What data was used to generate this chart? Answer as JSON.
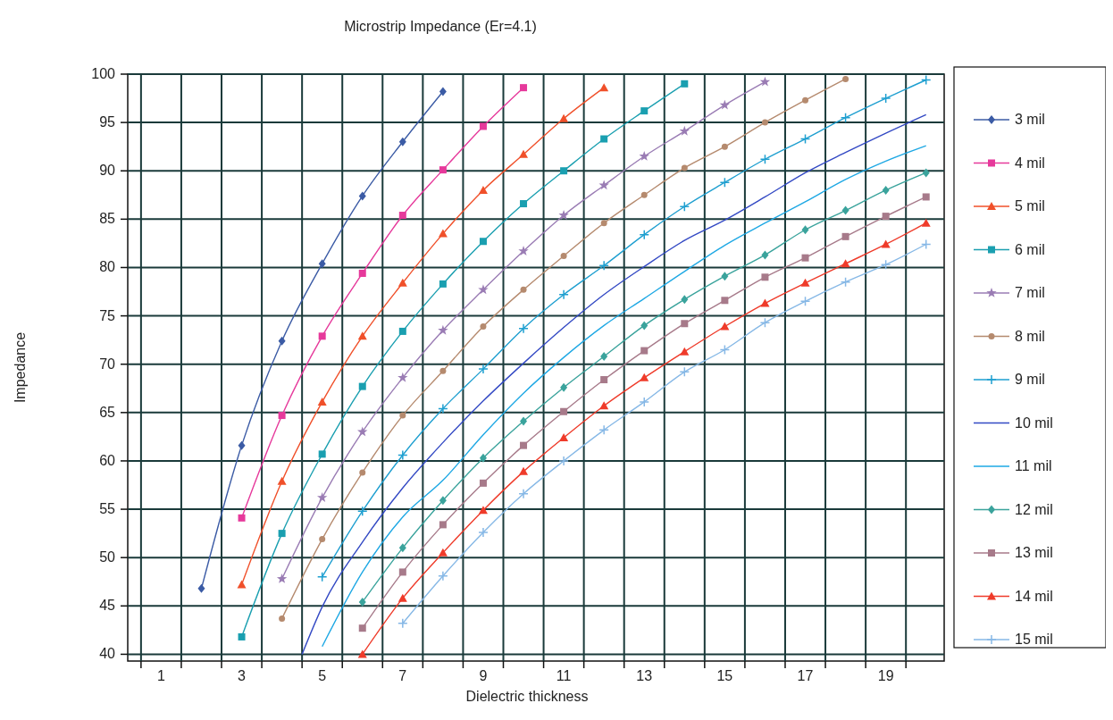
{
  "chart_data": {
    "type": "line",
    "title": "Microstrip Impedance (Er=4.1)",
    "xlabel": "Dielectric thickness",
    "ylabel": "Impedance",
    "xlim": [
      0.17,
      20.45
    ],
    "ylim": [
      39.3,
      100
    ],
    "xticks": [
      {
        "value": 0.5,
        "label": null
      },
      1,
      {
        "value": 1.5,
        "label": null
      },
      {
        "value": 2.5,
        "label": null
      },
      3,
      {
        "value": 3.5,
        "label": null
      },
      {
        "value": 4.5,
        "label": null
      },
      5,
      {
        "value": 5.5,
        "label": null
      },
      {
        "value": 6.5,
        "label": null
      },
      7,
      {
        "value": 7.5,
        "label": null
      },
      {
        "value": 8.5,
        "label": null
      },
      9,
      {
        "value": 9.5,
        "label": null
      },
      {
        "value": 10.5,
        "label": null
      },
      11,
      {
        "value": 11.5,
        "label": null
      },
      {
        "value": 12.5,
        "label": null
      },
      13,
      {
        "value": 13.5,
        "label": null
      },
      {
        "value": 14.5,
        "label": null
      },
      15,
      {
        "value": 15.5,
        "label": null
      },
      {
        "value": 16.5,
        "label": null
      },
      17,
      {
        "value": 17.5,
        "label": null
      },
      {
        "value": 18.5,
        "label": null
      },
      19,
      {
        "value": 19.5,
        "label": null
      }
    ],
    "yticks": [
      40,
      45,
      50,
      55,
      60,
      65,
      70,
      75,
      80,
      85,
      90,
      95,
      100
    ],
    "grid": true,
    "legend": "right",
    "series": [
      {
        "name": "3 mil",
        "color": "#3b5ba5",
        "marker": "diamond",
        "x": [
          2,
          3,
          4,
          5,
          6,
          7,
          8
        ],
        "values": [
          46.8,
          61.6,
          72.4,
          80.4,
          87.4,
          93.0,
          98.2
        ]
      },
      {
        "name": "4 mil",
        "color": "#e6399b",
        "marker": "square",
        "x": [
          3,
          4,
          5,
          6,
          7,
          8,
          9,
          10
        ],
        "values": [
          54.1,
          64.7,
          72.9,
          79.4,
          85.4,
          90.1,
          94.6,
          98.6
        ]
      },
      {
        "name": "5 mil",
        "color": "#f0502a",
        "marker": "triangle",
        "x": [
          3,
          4,
          5,
          6,
          7,
          8,
          9,
          10,
          11,
          12
        ],
        "values": [
          47.2,
          57.9,
          66.1,
          72.9,
          78.4,
          83.5,
          88.0,
          91.7,
          95.4,
          98.6
        ]
      },
      {
        "name": "6 mil",
        "color": "#1a9fb0",
        "marker": "square",
        "x": [
          3,
          4,
          5,
          6,
          7,
          8,
          9,
          10,
          11,
          12,
          13,
          14
        ],
        "values": [
          41.8,
          52.5,
          60.7,
          67.7,
          73.4,
          78.3,
          82.7,
          86.6,
          90.0,
          93.3,
          96.2,
          99.0
        ]
      },
      {
        "name": "7 mil",
        "color": "#9a7cb4",
        "marker": "star",
        "x": [
          4,
          5,
          6,
          7,
          8,
          9,
          10,
          11,
          12,
          13,
          14,
          15,
          16
        ],
        "values": [
          47.8,
          56.2,
          63.0,
          68.6,
          73.5,
          77.7,
          81.7,
          85.4,
          88.5,
          91.5,
          94.1,
          96.8,
          99.2
        ]
      },
      {
        "name": "8 mil",
        "color": "#b58a6e",
        "marker": "circle",
        "x": [
          4,
          5,
          6,
          7,
          8,
          9,
          10,
          11,
          12,
          13,
          14,
          15,
          16,
          17,
          18
        ],
        "values": [
          43.7,
          51.9,
          58.8,
          64.7,
          69.3,
          73.9,
          77.7,
          81.2,
          84.6,
          87.5,
          90.3,
          92.5,
          95.0,
          97.3,
          99.5
        ]
      },
      {
        "name": "9 mil",
        "color": "#1e9fd0",
        "marker": "cross",
        "x": [
          5,
          6,
          7,
          8,
          9,
          10,
          11,
          12,
          13,
          14,
          15,
          16,
          17,
          18,
          19,
          20
        ],
        "values": [
          48.0,
          54.8,
          60.6,
          65.4,
          69.5,
          73.7,
          77.2,
          80.2,
          83.4,
          86.3,
          88.8,
          91.2,
          93.3,
          95.5,
          97.5,
          99.4
        ]
      },
      {
        "name": "10 mil",
        "color": "#3349c4",
        "marker": "none",
        "x": [
          4.5,
          5,
          6,
          7,
          8,
          9,
          10,
          11,
          12,
          13,
          14,
          15,
          16,
          17,
          18,
          19,
          20
        ],
        "values": [
          40.0,
          44.9,
          51.6,
          57.2,
          61.9,
          66.2,
          70.1,
          73.8,
          77.2,
          80.1,
          82.8,
          84.9,
          87.3,
          89.8,
          91.9,
          93.9,
          95.8
        ]
      },
      {
        "name": "11 mil",
        "color": "#1ea8e4",
        "marker": "none",
        "x": [
          5,
          6,
          7,
          8,
          9,
          10,
          11,
          12,
          13,
          14,
          15,
          16,
          17,
          18,
          19,
          20
        ],
        "values": [
          40.8,
          48.5,
          54.2,
          58.0,
          62.7,
          67.0,
          70.7,
          74.0,
          76.8,
          79.6,
          82.3,
          84.6,
          86.8,
          89.1,
          91.0,
          92.6
        ]
      },
      {
        "name": "12 mil",
        "color": "#3aa39c",
        "marker": "diamond",
        "x": [
          6,
          7,
          8,
          9,
          10,
          11,
          12,
          13,
          14,
          15,
          16,
          17,
          18,
          19,
          20
        ],
        "values": [
          45.4,
          51.0,
          55.9,
          60.3,
          64.1,
          67.6,
          70.8,
          74.0,
          76.7,
          79.1,
          81.3,
          83.9,
          85.9,
          88.0,
          89.8
        ]
      },
      {
        "name": "13 mil",
        "color": "#a77a8a",
        "marker": "square",
        "x": [
          6,
          7,
          8,
          9,
          10,
          11,
          12,
          13,
          14,
          15,
          16,
          17,
          18,
          19,
          20
        ],
        "values": [
          42.7,
          48.5,
          53.4,
          57.7,
          61.6,
          65.1,
          68.4,
          71.4,
          74.2,
          76.6,
          79.0,
          81.0,
          83.2,
          85.3,
          87.3
        ]
      },
      {
        "name": "14 mil",
        "color": "#ef3b2a",
        "marker": "triangle",
        "x": [
          6,
          7,
          8,
          9,
          10,
          11,
          12,
          13,
          14,
          15,
          16,
          17,
          18,
          19,
          20
        ],
        "values": [
          40.0,
          45.8,
          50.5,
          54.9,
          58.9,
          62.4,
          65.7,
          68.6,
          71.3,
          73.9,
          76.3,
          78.4,
          80.4,
          82.4,
          84.6
        ]
      },
      {
        "name": "15 mil",
        "color": "#86b8e6",
        "marker": "cross",
        "x": [
          7,
          8,
          9,
          10,
          11,
          12,
          13,
          14,
          15,
          16,
          17,
          18,
          19,
          20
        ],
        "values": [
          43.2,
          48.1,
          52.6,
          56.6,
          60.0,
          63.2,
          66.1,
          69.2,
          71.5,
          74.3,
          76.5,
          78.5,
          80.3,
          82.4
        ]
      }
    ]
  }
}
